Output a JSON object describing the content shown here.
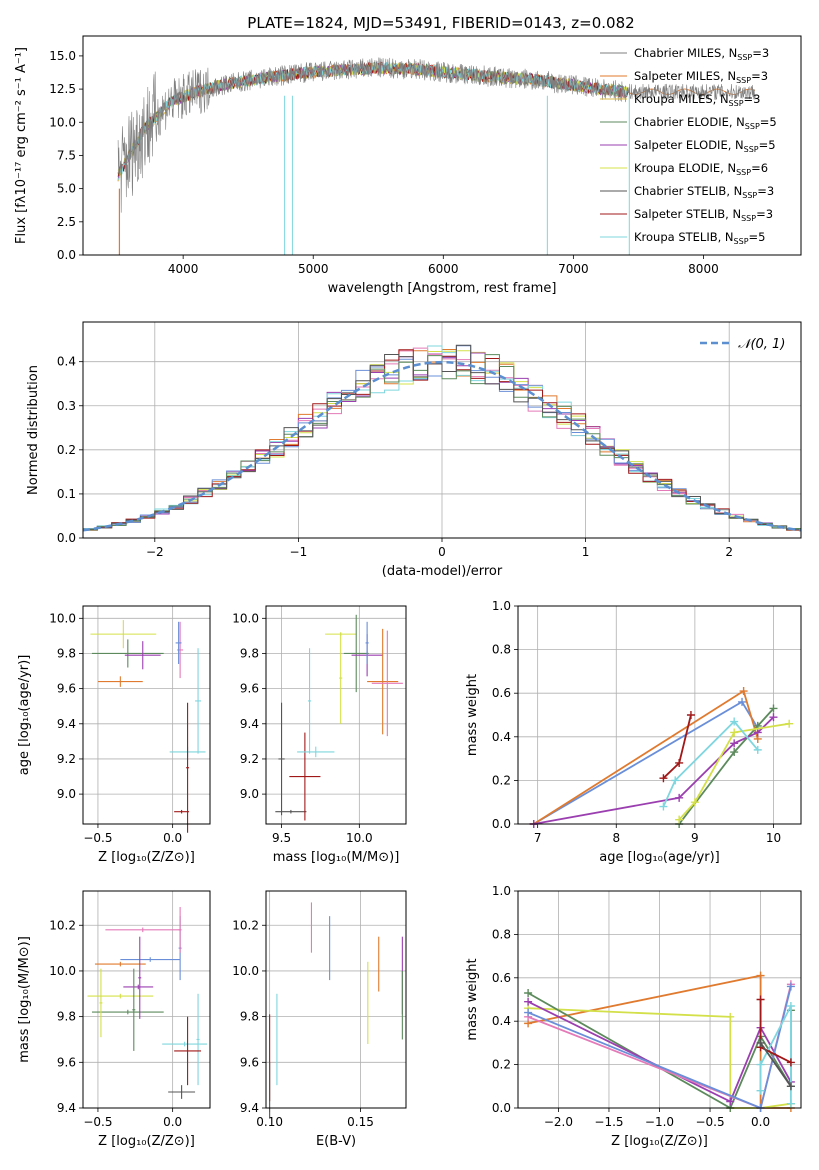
{
  "figure_title": "PLATE=1824, MJD=53491, FIBERID=0143, z=0.082",
  "colors": {
    "Chabrier MILES": "#6a8fd8",
    "Salpeter MILES": "#e07a2e",
    "Kroupa MILES": "#d8b84a",
    "Chabrier ELODIE": "#5c8a5c",
    "Salpeter ELODIE": "#9b3fb0",
    "Kroupa ELODIE": "#d4e04a",
    "Chabrier STELIB": "#555555",
    "Salpeter STELIB": "#a11818",
    "Kroupa STELIB": "#7fd6de",
    "Chabrier MILES alt": "#e47ab8",
    "normal": "#5b8fd0"
  },
  "chart_data": [
    {
      "id": "spectrum",
      "type": "line",
      "title": "PLATE=1824, MJD=53491, FIBERID=0143, z=0.082",
      "xlabel": "wavelength [Angstrom, rest frame]",
      "ylabel": "Flux [fλ10⁻¹⁷ erg cm⁻² s⁻¹ A⁻¹]",
      "xlim": [
        3230,
        8750
      ],
      "ylim": [
        0,
        16.5
      ],
      "xticks": [
        4000,
        5000,
        6000,
        7000,
        8000
      ],
      "yticks": [
        0.0,
        2.5,
        5.0,
        7.5,
        10.0,
        12.5,
        15.0
      ],
      "legend_position": "top-right",
      "legend": [
        {
          "label": "Chabrier MILES, N",
          "sub": "SSP",
          "tail": "=3",
          "color": "#7f7f7f"
        },
        {
          "label": "Salpeter MILES, N",
          "sub": "SSP",
          "tail": "=3",
          "color": "#e07a2e"
        },
        {
          "label": "Kroupa MILES, N",
          "sub": "SSP",
          "tail": "=3",
          "color": "#d8b84a"
        },
        {
          "label": "Chabrier ELODIE, N",
          "sub": "SSP",
          "tail": "=5",
          "color": "#5c8a5c"
        },
        {
          "label": "Salpeter ELODIE, N",
          "sub": "SSP",
          "tail": "=5",
          "color": "#9b3fb0"
        },
        {
          "label": "Kroupa ELODIE, N",
          "sub": "SSP",
          "tail": "=6",
          "color": "#d4e04a"
        },
        {
          "label": "Chabrier STELIB, N",
          "sub": "SSP",
          "tail": "=3",
          "color": "#555555"
        },
        {
          "label": "Salpeter STELIB, N",
          "sub": "SSP",
          "tail": "=3",
          "color": "#a11818"
        },
        {
          "label": "Kroupa STELIB, N",
          "sub": "SSP",
          "tail": "=5",
          "color": "#7fd6de"
        }
      ],
      "continuum": {
        "x": [
          3500,
          3700,
          3900,
          4100,
          4300,
          4600,
          4900,
          5200,
          5500,
          5800,
          6100,
          6400,
          6700,
          7000,
          7200,
          7400
        ],
        "y": [
          6.0,
          9.5,
          11.5,
          12.3,
          12.8,
          13.3,
          13.7,
          13.9,
          14.1,
          14.0,
          13.7,
          13.4,
          13.2,
          12.8,
          12.5,
          12.3
        ]
      }
    },
    {
      "id": "residuals",
      "type": "area",
      "xlabel": "(data-model)/error",
      "ylabel": "Normed distribution",
      "xlim": [
        -2.5,
        2.5
      ],
      "ylim": [
        0,
        0.49
      ],
      "xticks": [
        -2,
        -1,
        0,
        1,
        2
      ],
      "yticks": [
        0.0,
        0.1,
        0.2,
        0.3,
        0.4
      ],
      "legend_label": "𝒩(0, 1)",
      "legend_position": "top-right",
      "grid": true
    },
    {
      "id": "age_vs_Z",
      "type": "scatter",
      "xlabel": "Z [log₁₀(Z/Z⊙)]",
      "ylabel": "age  [log₁₀(age/yr)]",
      "xlim": [
        -0.6,
        0.25
      ],
      "ylim": [
        8.83,
        10.07
      ],
      "xticks": [
        -0.5,
        0.0
      ],
      "yticks": [
        9.0,
        9.2,
        9.4,
        9.6,
        9.8,
        10.0
      ],
      "grid": true,
      "points": [
        {
          "x": -0.35,
          "y": 9.64,
          "xerr": 0.15,
          "yerr": 0.03,
          "color": "#e07a2e"
        },
        {
          "x": -0.33,
          "y": 9.91,
          "xerr": 0.22,
          "yerr": 0.08,
          "color": "#d4e04a"
        },
        {
          "x": -0.3,
          "y": 9.8,
          "xerr": 0.24,
          "yerr": 0.08,
          "color": "#5c8a5c"
        },
        {
          "x": -0.2,
          "y": 9.79,
          "xerr": 0.12,
          "yerr": 0.08,
          "color": "#9b3fb0"
        },
        {
          "x": 0.05,
          "y": 9.82,
          "xerr": 0.02,
          "yerr": 0.16,
          "color": "#e47ab8"
        },
        {
          "x": 0.04,
          "y": 9.86,
          "xerr": 0.02,
          "yerr": 0.12,
          "color": "#6a8fd8"
        },
        {
          "x": 0.17,
          "y": 9.53,
          "xerr": 0.02,
          "yerr": 0.3,
          "color": "#7fd6de"
        },
        {
          "x": 0.1,
          "y": 9.24,
          "xerr": 0.12,
          "yerr": 0.03,
          "color": "#7fd6de"
        },
        {
          "x": 0.1,
          "y": 9.15,
          "xerr": 0.01,
          "yerr": 0.37,
          "color": "#a11818"
        },
        {
          "x": 0.06,
          "y": 8.9,
          "xerr": 0.05,
          "yerr": 0.01,
          "color": "#a11818"
        }
      ]
    },
    {
      "id": "age_vs_mass",
      "type": "scatter",
      "xlabel": "mass [log₁₀(M/M⊙)]",
      "xlim": [
        9.4,
        10.3
      ],
      "ylim": [
        8.83,
        10.07
      ],
      "xticks": [
        9.5,
        10.0
      ],
      "yticks": [
        9.0,
        9.2,
        9.4,
        9.6,
        9.8,
        10.0
      ],
      "grid": true,
      "points": [
        {
          "x": 9.5,
          "y": 9.2,
          "xerr": 0.02,
          "yerr": 0.32,
          "color": "#555555"
        },
        {
          "x": 9.56,
          "y": 8.9,
          "xerr": 0.1,
          "yerr": 0.01,
          "color": "#555555"
        },
        {
          "x": 9.65,
          "y": 9.1,
          "xerr": 0.1,
          "yerr": 0.25,
          "color": "#a11818"
        },
        {
          "x": 9.72,
          "y": 9.24,
          "xerr": 0.12,
          "yerr": 0.03,
          "color": "#7fd6de"
        },
        {
          "x": 9.68,
          "y": 9.53,
          "xerr": 0.01,
          "yerr": 0.3,
          "color": "#7fd6de"
        },
        {
          "x": 9.88,
          "y": 9.91,
          "xerr": 0.1,
          "yerr": 0.01,
          "color": "#d4e04a"
        },
        {
          "x": 9.88,
          "y": 9.66,
          "xerr": 0.01,
          "yerr": 0.26,
          "color": "#d4e04a"
        },
        {
          "x": 9.98,
          "y": 9.8,
          "xerr": 0.08,
          "yerr": 0.22,
          "color": "#5c8a5c"
        },
        {
          "x": 10.05,
          "y": 9.79,
          "xerr": 0.1,
          "yerr": 0.12,
          "color": "#9b3fb0"
        },
        {
          "x": 10.05,
          "y": 9.86,
          "xerr": 0.01,
          "yerr": 0.12,
          "color": "#6a8fd8"
        },
        {
          "x": 10.15,
          "y": 9.64,
          "xerr": 0.1,
          "yerr": 0.3,
          "color": "#e07a2e"
        },
        {
          "x": 10.18,
          "y": 9.63,
          "xerr": 0.1,
          "yerr": 0.3,
          "color": "#e47ab8"
        }
      ]
    },
    {
      "id": "weight_vs_age",
      "type": "line",
      "xlabel": "age  [log₁₀(age/yr)]",
      "ylabel": "mass weight",
      "xlim": [
        6.75,
        10.35
      ],
      "ylim": [
        0,
        1.0
      ],
      "xticks": [
        7,
        8,
        9,
        10
      ],
      "yticks": [
        0.0,
        0.2,
        0.4,
        0.6,
        0.8,
        1.0
      ],
      "grid": true,
      "series": [
        {
          "color": "#6a8fd8",
          "x": [
            6.95,
            9.6,
            9.8
          ],
          "y": [
            0.0,
            0.56,
            0.44
          ]
        },
        {
          "color": "#e07a2e",
          "x": [
            6.95,
            9.62,
            9.8
          ],
          "y": [
            0.0,
            0.61,
            0.39
          ]
        },
        {
          "color": "#5c8a5c",
          "x": [
            8.8,
            9.5,
            9.8,
            10.0
          ],
          "y": [
            0.0,
            0.33,
            0.45,
            0.53
          ]
        },
        {
          "color": "#9b3fb0",
          "x": [
            6.95,
            8.8,
            9.5,
            9.8,
            10.0
          ],
          "y": [
            0.0,
            0.12,
            0.37,
            0.42,
            0.49
          ]
        },
        {
          "color": "#d4e04a",
          "x": [
            8.8,
            9.0,
            9.5,
            10.2
          ],
          "y": [
            0.02,
            0.1,
            0.42,
            0.46
          ]
        },
        {
          "color": "#7fd6de",
          "x": [
            8.6,
            8.75,
            9.5,
            9.8
          ],
          "y": [
            0.08,
            0.2,
            0.47,
            0.34
          ]
        },
        {
          "color": "#a11818",
          "x": [
            8.6,
            8.8,
            8.95
          ],
          "y": [
            0.21,
            0.28,
            0.5
          ]
        }
      ]
    },
    {
      "id": "mass_vs_Z",
      "type": "scatter",
      "xlabel": "Z [log₁₀(Z/Z⊙)]",
      "ylabel": "mass [log₁₀(M/M⊙)]",
      "xlim": [
        -0.6,
        0.25
      ],
      "ylim": [
        9.4,
        10.35
      ],
      "xticks": [
        -0.5,
        0.0
      ],
      "yticks": [
        9.4,
        9.6,
        9.8,
        10.0,
        10.2
      ],
      "grid": true,
      "points": [
        {
          "x": -0.2,
          "y": 10.18,
          "xerr": 0.25,
          "yerr": 0.01,
          "color": "#e47ab8"
        },
        {
          "x": -0.15,
          "y": 10.05,
          "xerr": 0.2,
          "yerr": 0.01,
          "color": "#6a8fd8"
        },
        {
          "x": -0.35,
          "y": 10.03,
          "xerr": 0.17,
          "yerr": 0.01,
          "color": "#e07a2e"
        },
        {
          "x": -0.23,
          "y": 9.93,
          "xerr": 0.1,
          "yerr": 0.01,
          "color": "#9b3fb0"
        },
        {
          "x": -0.35,
          "y": 9.89,
          "xerr": 0.22,
          "yerr": 0.01,
          "color": "#d4e04a"
        },
        {
          "x": -0.3,
          "y": 9.82,
          "xerr": 0.24,
          "yerr": 0.01,
          "color": "#5c8a5c"
        },
        {
          "x": 0.05,
          "y": 10.1,
          "xerr": 0.01,
          "yerr": 0.14,
          "color": "#6a8fd8"
        },
        {
          "x": 0.05,
          "y": 10.18,
          "xerr": 0.01,
          "yerr": 0.1,
          "color": "#e47ab8"
        },
        {
          "x": -0.22,
          "y": 9.97,
          "xerr": 0.01,
          "yerr": 0.18,
          "color": "#9b3fb0"
        },
        {
          "x": -0.26,
          "y": 9.83,
          "xerr": 0.01,
          "yerr": 0.18,
          "color": "#5c8a5c"
        },
        {
          "x": -0.48,
          "y": 9.86,
          "xerr": 0.01,
          "yerr": 0.15,
          "color": "#d4e04a"
        },
        {
          "x": 0.08,
          "y": 9.68,
          "xerr": 0.15,
          "yerr": 0.01,
          "color": "#7fd6de"
        },
        {
          "x": 0.17,
          "y": 9.7,
          "xerr": 0.01,
          "yerr": 0.2,
          "color": "#7fd6de"
        },
        {
          "x": 0.1,
          "y": 9.65,
          "xerr": 0.09,
          "yerr": 0.15,
          "color": "#a11818"
        },
        {
          "x": 0.06,
          "y": 9.47,
          "xerr": 0.09,
          "yerr": 0.03,
          "color": "#555555"
        }
      ]
    },
    {
      "id": "mass_vs_ebv",
      "type": "scatter",
      "xlabel": "E(B-V)",
      "xlim": [
        0.098,
        0.175
      ],
      "ylim": [
        9.4,
        10.35
      ],
      "xticks": [
        0.1,
        0.15
      ],
      "yticks": [
        9.4,
        9.6,
        9.8,
        10.0,
        10.2
      ],
      "grid": true,
      "points": [
        {
          "x": 0.1,
          "y": 9.62,
          "yerr": 0.19,
          "color": "#a11818"
        },
        {
          "x": 0.1,
          "y": 9.48,
          "yerr": 0.12,
          "color": "#555555"
        },
        {
          "x": 0.104,
          "y": 9.7,
          "yerr": 0.2,
          "color": "#7fd6de"
        },
        {
          "x": 0.123,
          "y": 10.19,
          "yerr": 0.11,
          "color": "#e47ab8"
        },
        {
          "x": 0.133,
          "y": 10.1,
          "yerr": 0.14,
          "color": "#6a8fd8"
        },
        {
          "x": 0.154,
          "y": 9.86,
          "yerr": 0.18,
          "color": "#d4e04a"
        },
        {
          "x": 0.16,
          "y": 10.03,
          "yerr": 0.12,
          "color": "#e07a2e"
        },
        {
          "x": 0.173,
          "y": 9.98,
          "yerr": 0.17,
          "color": "#9b3fb0"
        },
        {
          "x": 0.173,
          "y": 9.85,
          "yerr": 0.15,
          "color": "#5c8a5c"
        }
      ]
    },
    {
      "id": "weight_vs_Z",
      "type": "line",
      "xlabel": "Z [log₁₀(Z/Z⊙)]",
      "ylabel": "mass weight",
      "xlim": [
        -2.4,
        0.4
      ],
      "ylim": [
        0,
        1.0
      ],
      "xticks": [
        -2.0,
        -1.5,
        -1.0,
        -0.5,
        0.0
      ],
      "yticks": [
        0.0,
        0.2,
        0.4,
        0.6,
        0.8,
        1.0
      ],
      "grid": true,
      "series": [
        {
          "color": "#e07a2e",
          "x": [
            -2.3,
            0.0,
            0.0,
            0.3
          ],
          "y": [
            0.39,
            0.61,
            0.0,
            0.0
          ]
        },
        {
          "color": "#d4e04a",
          "x": [
            -2.3,
            -0.3,
            -0.3,
            0.0,
            0.3
          ],
          "y": [
            0.46,
            0.42,
            0.0,
            0.0,
            0.02
          ]
        },
        {
          "color": "#5c8a5c",
          "x": [
            -2.3,
            -0.3,
            0.0,
            0.3,
            0.3
          ],
          "y": [
            0.53,
            0.0,
            0.33,
            0.1,
            0.45
          ]
        },
        {
          "color": "#9b3fb0",
          "x": [
            -2.3,
            -0.3,
            0.0,
            0.3
          ],
          "y": [
            0.49,
            0.03,
            0.37,
            0.12
          ]
        },
        {
          "color": "#e47ab8",
          "x": [
            -2.3,
            0.0,
            0.3
          ],
          "y": [
            0.42,
            0.0,
            0.57
          ]
        },
        {
          "color": "#6a8fd8",
          "x": [
            -2.3,
            0.0,
            0.3
          ],
          "y": [
            0.44,
            0.0,
            0.56
          ]
        },
        {
          "color": "#7fd6de",
          "x": [
            0.0,
            0.0,
            0.3,
            0.3
          ],
          "y": [
            0.08,
            0.2,
            0.47,
            0.02
          ]
        },
        {
          "color": "#a11818",
          "x": [
            0.0,
            0.0,
            0.3
          ],
          "y": [
            0.5,
            0.28,
            0.21
          ]
        },
        {
          "color": "#555555",
          "x": [
            0.0,
            0.3
          ],
          "y": [
            0.3,
            0.1
          ]
        }
      ]
    }
  ]
}
